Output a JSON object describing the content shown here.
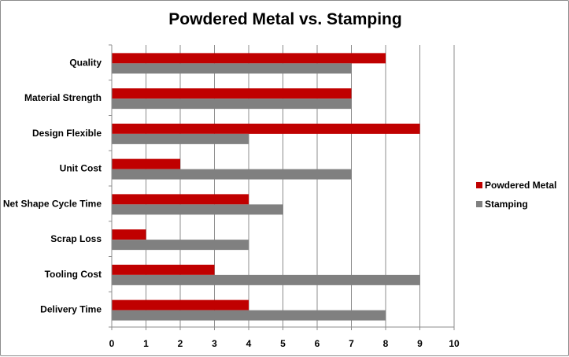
{
  "chart_data": {
    "type": "bar",
    "orientation": "horizontal",
    "title": "Powdered Metal vs. Stamping",
    "categories": [
      "Quality",
      "Material Strength",
      "Design Flexible",
      "Unit Cost",
      "Net Shape Cycle Time",
      "Scrap Loss",
      "Tooling Cost",
      "Delivery Time"
    ],
    "series": [
      {
        "name": "Powdered Metal",
        "color": "#c00000",
        "values": [
          8,
          7,
          9,
          2,
          4,
          1,
          3,
          4
        ]
      },
      {
        "name": "Stamping",
        "color": "#808080",
        "values": [
          7,
          7,
          4,
          7,
          5,
          4,
          9,
          8
        ]
      }
    ],
    "xlim": [
      0,
      10
    ],
    "xticks": [
      "0",
      "1",
      "2",
      "3",
      "4",
      "5",
      "6",
      "7",
      "8",
      "9",
      "10"
    ],
    "xlabel": "",
    "ylabel": "",
    "grid": "vertical",
    "legend_position": "right"
  }
}
